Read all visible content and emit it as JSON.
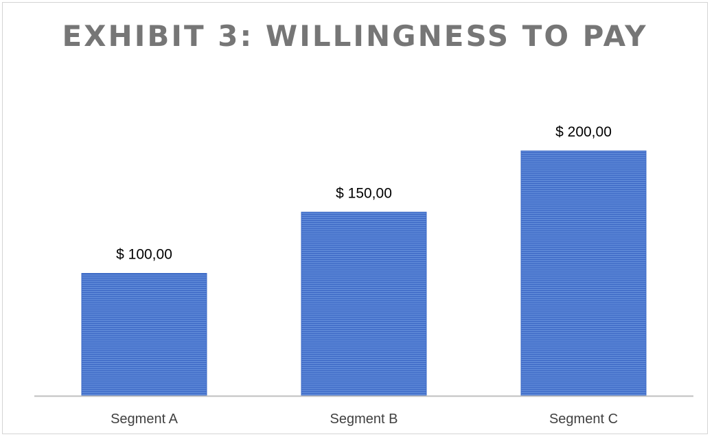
{
  "chart_data": {
    "type": "bar",
    "title": "EXHIBIT 3: WILLINGNESS TO PAY",
    "categories": [
      "Segment A",
      "Segment B",
      "Segment C"
    ],
    "values": [
      100,
      150,
      200
    ],
    "data_labels": [
      "$ 100,00",
      "$ 150,00",
      "$ 200,00"
    ],
    "xlabel": "",
    "ylabel": "",
    "ylim": [
      0,
      200
    ],
    "grid": false,
    "legend": "none",
    "colors": {
      "bar_fill": "#5b86d6",
      "bar_stripe": "#3a66c4",
      "bar_border": "#3d6bc6",
      "axis": "#bfbfbf",
      "title": "#767676"
    }
  }
}
